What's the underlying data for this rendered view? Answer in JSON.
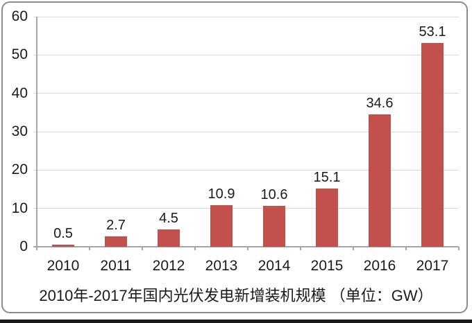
{
  "frame": {
    "background": "#ffffff",
    "border_color": "#8c8c8c",
    "bottom_strip_color": "#1a1a1a"
  },
  "chart_data": {
    "type": "bar",
    "title": "2010年-2017年国内光伏发电新增装机规模 （单位：GW）",
    "unit": "GW",
    "categories": [
      "2010",
      "2011",
      "2012",
      "2013",
      "2014",
      "2015",
      "2016",
      "2017"
    ],
    "values": [
      0.5,
      2.7,
      4.5,
      10.9,
      10.6,
      15.1,
      34.6,
      53.1
    ],
    "data_labels": [
      "0.5",
      "2.7",
      "4.5",
      "10.9",
      "10.6",
      "15.1",
      "34.6",
      "53.1"
    ],
    "yticks": [
      0,
      10,
      20,
      30,
      40,
      50,
      60
    ],
    "ylim": [
      0,
      60
    ],
    "ytick_interval": 10,
    "xlabel": "",
    "ylabel": "",
    "grid": true,
    "legend_position": "none",
    "bar_color": "#c3504c",
    "gridline_color": "#d9d9d9",
    "axis_color": "#a6a6a6",
    "text_color": "#1a1a1a"
  }
}
